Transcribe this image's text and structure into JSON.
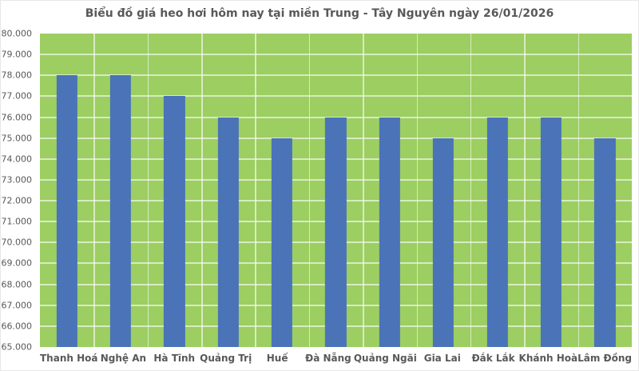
{
  "chart_data": {
    "type": "bar",
    "title": "Biểu đồ giá heo hơi hôm nay tại miền Trung - Tây Nguyên ngày 26/01/2026",
    "categories": [
      "Thanh Hoá",
      "Nghệ An",
      "Hà Tĩnh",
      "Quảng Trị",
      "Huế",
      "Đà Nẵng",
      "Quảng Ngãi",
      "Gia Lai",
      "Đắk Lắk",
      "Khánh Hoà",
      "Lâm Đồng"
    ],
    "values": [
      78000,
      78000,
      77000,
      76000,
      75000,
      76000,
      76000,
      75000,
      76000,
      76000,
      75000
    ],
    "xlabel": "",
    "ylabel": "",
    "ylim": [
      65000,
      80000
    ],
    "ytick_step": 1000,
    "ytick_labels": [
      "65.000",
      "66.000",
      "67.000",
      "68.000",
      "69.000",
      "70.000",
      "71.000",
      "72.000",
      "73.000",
      "74.000",
      "75.000",
      "76.000",
      "77.000",
      "78.000",
      "79.000",
      "80.000"
    ],
    "grid": true,
    "legend": "none",
    "colors": {
      "bar": "#4a73b8",
      "plot_background": "#9cce62",
      "gridline": "rgba(255,255,255,0.6)",
      "text": "#595959"
    }
  }
}
